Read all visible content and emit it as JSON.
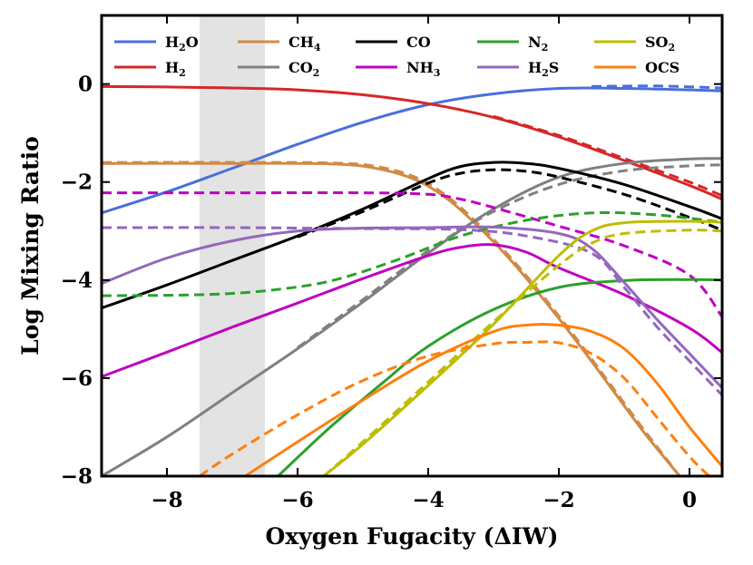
{
  "chart_data": {
    "type": "line",
    "xlabel": "Oxygen Fugacity (ΔIW)",
    "ylabel": "Log Mixing Ratio",
    "xlim": [
      -9.0,
      0.5
    ],
    "ylim": [
      -8,
      1.4
    ],
    "xticks": [
      -8,
      -6,
      -4,
      -2,
      0
    ],
    "xtick_labels": [
      "−8",
      "−6",
      "−4",
      "−2",
      "0"
    ],
    "yticks": [
      0,
      -2,
      -4,
      -6,
      -8
    ],
    "ytick_labels": [
      "0",
      "−2",
      "−4",
      "−6",
      "−8"
    ],
    "grid": false,
    "legend_position": "top",
    "shaded_region": {
      "x_start": -7.5,
      "x_end": -6.5,
      "color": "#e3e3e3"
    },
    "series": [
      {
        "name": "H2O",
        "label_main": "H",
        "label_sub": "2",
        "label_rest": "O",
        "color": "#4a6fdc",
        "solid": [
          [
            -9,
            -2.63
          ],
          [
            -8,
            -2.2
          ],
          [
            -7,
            -1.72
          ],
          [
            -6,
            -1.23
          ],
          [
            -5,
            -0.78
          ],
          [
            -4,
            -0.42
          ],
          [
            -3,
            -0.2
          ],
          [
            -2,
            -0.09
          ],
          [
            -1,
            -0.09
          ],
          [
            0,
            -0.12
          ],
          [
            0.5,
            -0.14
          ]
        ],
        "dashed": [
          [
            -1.5,
            -0.05
          ],
          [
            -0.5,
            -0.04
          ],
          [
            0.5,
            -0.08
          ]
        ]
      },
      {
        "name": "H2",
        "label_main": "H",
        "label_sub": "2",
        "label_rest": "",
        "color": "#d62728",
        "solid": [
          [
            -9,
            -0.05
          ],
          [
            -8,
            -0.06
          ],
          [
            -7,
            -0.08
          ],
          [
            -6,
            -0.12
          ],
          [
            -5,
            -0.22
          ],
          [
            -4,
            -0.4
          ],
          [
            -3,
            -0.68
          ],
          [
            -2,
            -1.08
          ],
          [
            -1,
            -1.56
          ],
          [
            0,
            -2.07
          ],
          [
            0.5,
            -2.35
          ]
        ],
        "dashed": [
          [
            -3,
            -0.66
          ],
          [
            -2,
            -1.05
          ],
          [
            -1,
            -1.52
          ],
          [
            0,
            -2.0
          ],
          [
            0.5,
            -2.28
          ]
        ]
      },
      {
        "name": "CH4",
        "label_main": "CH",
        "label_sub": "4",
        "label_rest": "",
        "color": "#d18a46",
        "solid": [
          [
            -9,
            -1.62
          ],
          [
            -7,
            -1.62
          ],
          [
            -5.5,
            -1.63
          ],
          [
            -4.8,
            -1.72
          ],
          [
            -4.2,
            -1.95
          ],
          [
            -3.7,
            -2.35
          ],
          [
            -3.2,
            -2.95
          ],
          [
            -2.7,
            -3.65
          ],
          [
            -2.2,
            -4.45
          ],
          [
            -1.7,
            -5.3
          ],
          [
            -1.2,
            -6.2
          ],
          [
            -0.7,
            -7.1
          ],
          [
            -0.15,
            -8.0
          ]
        ],
        "dashed": [
          [
            -9,
            -1.6
          ],
          [
            -7,
            -1.6
          ],
          [
            -5.5,
            -1.61
          ],
          [
            -4.8,
            -1.68
          ],
          [
            -4.2,
            -1.9
          ],
          [
            -3.7,
            -2.3
          ],
          [
            -3.2,
            -2.9
          ],
          [
            -2.7,
            -3.6
          ],
          [
            -2.2,
            -4.4
          ],
          [
            -1.7,
            -5.25
          ],
          [
            -1.2,
            -6.15
          ],
          [
            -0.7,
            -7.05
          ],
          [
            -0.15,
            -8.0
          ]
        ]
      },
      {
        "name": "CO2",
        "label_main": "CO",
        "label_sub": "2",
        "label_rest": "",
        "color": "#808080",
        "solid": [
          [
            -9,
            -8.0
          ],
          [
            -8,
            -7.2
          ],
          [
            -7,
            -6.3
          ],
          [
            -6,
            -5.4
          ],
          [
            -5,
            -4.45
          ],
          [
            -4,
            -3.45
          ],
          [
            -3,
            -2.55
          ],
          [
            -2,
            -1.9
          ],
          [
            -1,
            -1.62
          ],
          [
            0,
            -1.53
          ],
          [
            0.5,
            -1.52
          ]
        ],
        "dashed": [
          [
            -6,
            -5.38
          ],
          [
            -5,
            -4.4
          ],
          [
            -4,
            -3.4
          ],
          [
            -3,
            -2.6
          ],
          [
            -2,
            -2.05
          ],
          [
            -1,
            -1.77
          ],
          [
            0,
            -1.67
          ],
          [
            0.5,
            -1.65
          ]
        ]
      },
      {
        "name": "CO",
        "label_main": "CO",
        "label_sub": "",
        "label_rest": "",
        "color": "#000000",
        "solid": [
          [
            -9,
            -4.57
          ],
          [
            -8,
            -4.1
          ],
          [
            -7,
            -3.6
          ],
          [
            -6,
            -3.1
          ],
          [
            -5,
            -2.55
          ],
          [
            -4,
            -1.93
          ],
          [
            -3.5,
            -1.68
          ],
          [
            -3,
            -1.6
          ],
          [
            -2.5,
            -1.62
          ],
          [
            -2,
            -1.72
          ],
          [
            -1,
            -2.05
          ],
          [
            0,
            -2.5
          ],
          [
            0.5,
            -2.75
          ]
        ],
        "dashed": [
          [
            -6,
            -3.12
          ],
          [
            -5,
            -2.6
          ],
          [
            -4,
            -2.02
          ],
          [
            -3.5,
            -1.82
          ],
          [
            -3,
            -1.75
          ],
          [
            -2.5,
            -1.78
          ],
          [
            -2,
            -1.9
          ],
          [
            -1,
            -2.25
          ],
          [
            0,
            -2.72
          ],
          [
            0.5,
            -2.98
          ]
        ]
      },
      {
        "name": "NH3",
        "label_main": "NH",
        "label_sub": "3",
        "label_rest": "",
        "color": "#c000c0",
        "solid": [
          [
            -9,
            -5.97
          ],
          [
            -8,
            -5.47
          ],
          [
            -7,
            -4.96
          ],
          [
            -6,
            -4.47
          ],
          [
            -5,
            -3.97
          ],
          [
            -4,
            -3.5
          ],
          [
            -3.5,
            -3.33
          ],
          [
            -3,
            -3.28
          ],
          [
            -2.5,
            -3.43
          ],
          [
            -2,
            -3.75
          ],
          [
            -1,
            -4.3
          ],
          [
            0,
            -4.98
          ],
          [
            0.5,
            -5.48
          ]
        ],
        "dashed": [
          [
            -9,
            -2.22
          ],
          [
            -7,
            -2.22
          ],
          [
            -5,
            -2.22
          ],
          [
            -4,
            -2.25
          ],
          [
            -3.5,
            -2.35
          ],
          [
            -3,
            -2.52
          ],
          [
            -2,
            -2.9
          ],
          [
            -1,
            -3.3
          ],
          [
            0,
            -3.9
          ],
          [
            0.5,
            -4.75
          ]
        ]
      },
      {
        "name": "N2",
        "label_main": "N",
        "label_sub": "2",
        "label_rest": "",
        "color": "#2ca02c",
        "solid": [
          [
            -6.3,
            -8.0
          ],
          [
            -5.5,
            -7.0
          ],
          [
            -4.7,
            -6.1
          ],
          [
            -4,
            -5.35
          ],
          [
            -3,
            -4.6
          ],
          [
            -2,
            -4.15
          ],
          [
            -1,
            -4.01
          ],
          [
            0,
            -3.99
          ],
          [
            0.5,
            -4.0
          ]
        ],
        "dashed": [
          [
            -9,
            -4.32
          ],
          [
            -7.5,
            -4.3
          ],
          [
            -6.5,
            -4.22
          ],
          [
            -5.5,
            -4.02
          ],
          [
            -4.5,
            -3.6
          ],
          [
            -3.5,
            -3.1
          ],
          [
            -2.5,
            -2.78
          ],
          [
            -1.5,
            -2.63
          ],
          [
            -0.5,
            -2.67
          ],
          [
            0.5,
            -2.82
          ]
        ]
      },
      {
        "name": "H2S",
        "label_main": "H",
        "label_sub": "2",
        "label_rest": "S",
        "color": "#9467bd",
        "solid": [
          [
            -9,
            -4.07
          ],
          [
            -8,
            -3.55
          ],
          [
            -7,
            -3.2
          ],
          [
            -6,
            -3.0
          ],
          [
            -5,
            -2.94
          ],
          [
            -4,
            -2.93
          ],
          [
            -3,
            -2.92
          ],
          [
            -2,
            -3.05
          ],
          [
            -1.5,
            -3.35
          ],
          [
            -1,
            -4.05
          ],
          [
            -0.5,
            -4.8
          ],
          [
            0,
            -5.5
          ],
          [
            0.5,
            -6.2
          ]
        ],
        "dashed": [
          [
            -9,
            -2.93
          ],
          [
            -7,
            -2.93
          ],
          [
            -5,
            -2.95
          ],
          [
            -3.5,
            -2.97
          ],
          [
            -2.5,
            -3.1
          ],
          [
            -1.5,
            -3.45
          ],
          [
            -1,
            -4.15
          ],
          [
            -0.5,
            -4.95
          ],
          [
            0,
            -5.65
          ],
          [
            0.5,
            -6.35
          ]
        ]
      },
      {
        "name": "SO2",
        "label_main": "SO",
        "label_sub": "2",
        "label_rest": "",
        "color": "#bdbd00",
        "solid": [
          [
            -5.6,
            -8.0
          ],
          [
            -5,
            -7.35
          ],
          [
            -4,
            -6.15
          ],
          [
            -3,
            -4.9
          ],
          [
            -2,
            -3.5
          ],
          [
            -1.5,
            -3.0
          ],
          [
            -1,
            -2.83
          ],
          [
            0,
            -2.8
          ],
          [
            0.5,
            -2.82
          ]
        ],
        "dashed": [
          [
            -5.6,
            -8.0
          ],
          [
            -5,
            -7.3
          ],
          [
            -4,
            -6.08
          ],
          [
            -3,
            -4.85
          ],
          [
            -2,
            -3.7
          ],
          [
            -1.5,
            -3.25
          ],
          [
            -1,
            -3.05
          ],
          [
            0,
            -2.98
          ],
          [
            0.5,
            -3.0
          ]
        ]
      },
      {
        "name": "OCS",
        "label_main": "OCS",
        "label_sub": "",
        "label_rest": "",
        "color": "#ff7f0e",
        "solid": [
          [
            -6.8,
            -8.0
          ],
          [
            -6,
            -7.3
          ],
          [
            -5,
            -6.45
          ],
          [
            -4,
            -5.65
          ],
          [
            -3,
            -5.05
          ],
          [
            -2.5,
            -4.92
          ],
          [
            -2,
            -4.92
          ],
          [
            -1.5,
            -5.05
          ],
          [
            -1,
            -5.4
          ],
          [
            -0.5,
            -6.1
          ],
          [
            0,
            -7.0
          ],
          [
            0.5,
            -7.8
          ]
        ],
        "dashed": [
          [
            -7.5,
            -8.0
          ],
          [
            -7,
            -7.55
          ],
          [
            -6,
            -6.75
          ],
          [
            -5,
            -6.05
          ],
          [
            -4,
            -5.55
          ],
          [
            -3,
            -5.3
          ],
          [
            -2.5,
            -5.27
          ],
          [
            -2,
            -5.28
          ],
          [
            -1.5,
            -5.5
          ],
          [
            -1,
            -6.0
          ],
          [
            -0.5,
            -6.8
          ],
          [
            0,
            -7.6
          ],
          [
            0.3,
            -8.0
          ]
        ]
      }
    ]
  }
}
